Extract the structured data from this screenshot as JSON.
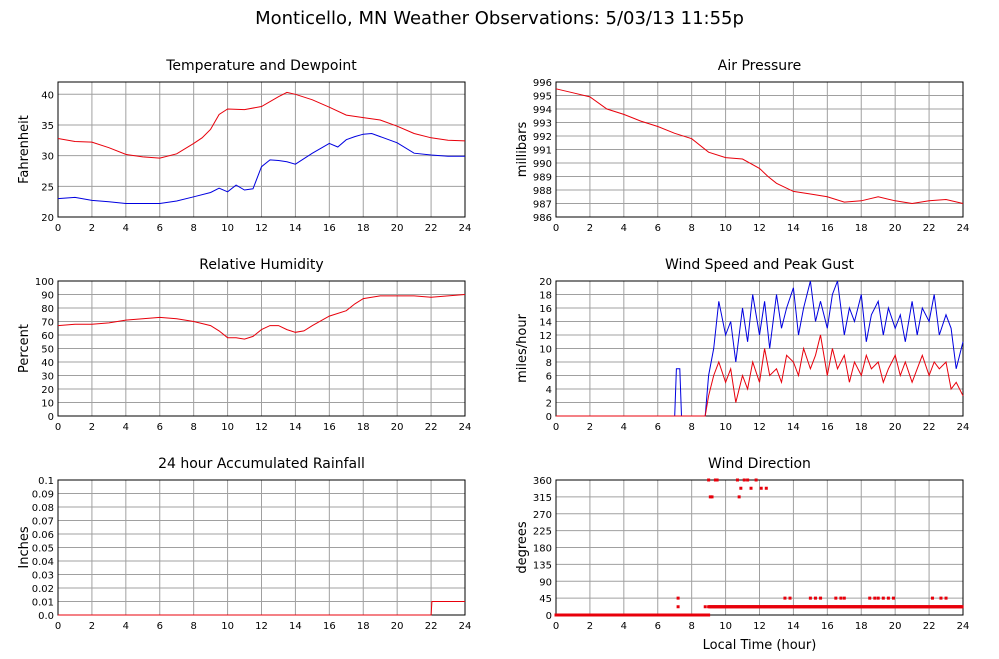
{
  "page": {
    "title": "Monticello, MN Weather Observations: 5/03/13 11:55p"
  },
  "colors": {
    "red": "#e8000b",
    "blue": "#0000e0",
    "grid": "#a0a0a0"
  },
  "chart_data": [
    {
      "id": "temp",
      "type": "line",
      "title": "Temperature and Dewpoint",
      "xlabel": "",
      "ylabel": "Fahrenheit",
      "xlim": [
        0,
        24
      ],
      "ylim": [
        20,
        42
      ],
      "xticks": [
        0,
        2,
        4,
        6,
        8,
        10,
        12,
        14,
        16,
        18,
        20,
        22,
        24
      ],
      "yticks": [
        20,
        25,
        30,
        35,
        40
      ],
      "series": [
        {
          "color": "red",
          "x": [
            0,
            1,
            2,
            3,
            4,
            5,
            6,
            7,
            8,
            8.5,
            9,
            9.5,
            10,
            11,
            12,
            13,
            13.5,
            14,
            15,
            16,
            17,
            18,
            19,
            20,
            21,
            22,
            23,
            24
          ],
          "y": [
            32.8,
            32.3,
            32.2,
            31.3,
            30.2,
            29.8,
            29.6,
            30.3,
            32.0,
            32.9,
            34.3,
            36.7,
            37.6,
            37.5,
            38.0,
            39.6,
            40.3,
            40.0,
            39.1,
            37.9,
            36.6,
            36.2,
            35.8,
            34.8,
            33.6,
            32.9,
            32.5,
            32.4
          ]
        },
        {
          "color": "blue",
          "x": [
            0,
            1,
            2,
            3,
            4,
            5,
            6,
            7,
            8,
            9,
            9.5,
            10,
            10.5,
            11,
            11.5,
            12,
            12.5,
            13,
            13.5,
            14,
            15,
            16,
            16.5,
            17,
            17.5,
            18,
            18.5,
            19,
            20,
            21,
            22,
            23,
            24
          ],
          "y": [
            23.0,
            23.2,
            22.7,
            22.5,
            22.2,
            22.2,
            22.2,
            22.6,
            23.3,
            24.0,
            24.7,
            24.1,
            25.2,
            24.4,
            24.6,
            28.2,
            29.3,
            29.2,
            29.0,
            28.6,
            30.4,
            32.0,
            31.4,
            32.6,
            33.1,
            33.5,
            33.6,
            33.1,
            32.1,
            30.4,
            30.1,
            29.9,
            29.9
          ]
        }
      ]
    },
    {
      "id": "pressure",
      "type": "line",
      "title": "Air Pressure",
      "xlabel": "",
      "ylabel": "millibars",
      "xlim": [
        0,
        24
      ],
      "ylim": [
        986,
        996
      ],
      "xticks": [
        0,
        2,
        4,
        6,
        8,
        10,
        12,
        14,
        16,
        18,
        20,
        22,
        24
      ],
      "yticks": [
        986,
        987,
        988,
        989,
        990,
        991,
        992,
        993,
        994,
        995,
        996
      ],
      "series": [
        {
          "color": "red",
          "x": [
            0,
            1,
            2,
            3,
            4,
            5,
            6,
            7,
            8,
            9,
            10,
            11,
            12,
            12.5,
            13,
            14,
            15,
            16,
            17,
            18,
            19,
            20,
            21,
            22,
            23,
            24
          ],
          "y": [
            995.5,
            995.2,
            994.9,
            994.0,
            993.6,
            993.1,
            992.7,
            992.2,
            991.8,
            990.8,
            990.4,
            990.3,
            989.6,
            989.0,
            988.5,
            987.9,
            987.7,
            987.5,
            987.1,
            987.2,
            987.5,
            987.2,
            987.0,
            987.2,
            987.3,
            987.0
          ]
        }
      ]
    },
    {
      "id": "humidity",
      "type": "line",
      "title": "Relative Humidity",
      "xlabel": "",
      "ylabel": "Percent",
      "xlim": [
        0,
        24
      ],
      "ylim": [
        0,
        100
      ],
      "xticks": [
        0,
        2,
        4,
        6,
        8,
        10,
        12,
        14,
        16,
        18,
        20,
        22,
        24
      ],
      "yticks": [
        0,
        10,
        20,
        30,
        40,
        50,
        60,
        70,
        80,
        90,
        100
      ],
      "series": [
        {
          "color": "red",
          "x": [
            0,
            1,
            2,
            3,
            4,
            5,
            6,
            7,
            8,
            9,
            9.5,
            10,
            10.5,
            11,
            11.5,
            12,
            12.5,
            13,
            13.5,
            14,
            14.5,
            15,
            16,
            17,
            17.5,
            18,
            18.5,
            19,
            20,
            21,
            22,
            23,
            24
          ],
          "y": [
            67,
            68,
            68,
            69,
            71,
            72,
            73,
            72,
            70,
            67,
            63,
            58,
            58,
            57,
            59,
            64,
            67,
            67,
            64,
            62,
            63,
            67,
            74,
            78,
            83,
            87,
            88,
            89,
            89,
            89,
            88,
            89,
            90
          ]
        }
      ]
    },
    {
      "id": "wind",
      "type": "line",
      "title": "Wind Speed and Peak Gust",
      "xlabel": "",
      "ylabel": "miles/hour",
      "xlim": [
        0,
        24
      ],
      "ylim": [
        0,
        20
      ],
      "xticks": [
        0,
        2,
        4,
        6,
        8,
        10,
        12,
        14,
        16,
        18,
        20,
        22,
        24
      ],
      "yticks": [
        0,
        2,
        4,
        6,
        8,
        10,
        12,
        14,
        16,
        18,
        20
      ],
      "series": [
        {
          "color": "blue",
          "x": [
            0,
            7.0,
            7.1,
            7.3,
            7.4,
            8.8,
            9.0,
            9.3,
            9.6,
            10.0,
            10.3,
            10.6,
            11.0,
            11.3,
            11.6,
            12.0,
            12.3,
            12.6,
            13.0,
            13.3,
            13.6,
            14.0,
            14.3,
            14.6,
            15.0,
            15.3,
            15.6,
            16.0,
            16.3,
            16.6,
            17.0,
            17.3,
            17.6,
            18.0,
            18.3,
            18.6,
            19.0,
            19.3,
            19.6,
            20.0,
            20.3,
            20.6,
            21.0,
            21.3,
            21.6,
            22.0,
            22.3,
            22.6,
            23.0,
            23.3,
            23.6,
            24.0
          ],
          "y": [
            0,
            0,
            7,
            7,
            0,
            0,
            6,
            10,
            17,
            12,
            14,
            8,
            16,
            11,
            18,
            12,
            17,
            10,
            18,
            13,
            16,
            19,
            12,
            16,
            20,
            14,
            17,
            13,
            18,
            20,
            12,
            16,
            14,
            18,
            11,
            15,
            17,
            12,
            16,
            13,
            15,
            11,
            17,
            12,
            16,
            14,
            18,
            12,
            15,
            13,
            7,
            11
          ]
        },
        {
          "color": "red",
          "x": [
            0,
            8.8,
            9.0,
            9.3,
            9.6,
            10.0,
            10.3,
            10.6,
            11.0,
            11.3,
            11.6,
            12.0,
            12.3,
            12.6,
            13.0,
            13.3,
            13.6,
            14.0,
            14.3,
            14.6,
            15.0,
            15.3,
            15.6,
            16.0,
            16.3,
            16.6,
            17.0,
            17.3,
            17.6,
            18.0,
            18.3,
            18.6,
            19.0,
            19.3,
            19.6,
            20.0,
            20.3,
            20.6,
            21.0,
            21.3,
            21.6,
            22.0,
            22.3,
            22.6,
            23.0,
            23.3,
            23.6,
            24.0
          ],
          "y": [
            0,
            0,
            3,
            6,
            8,
            5,
            7,
            2,
            6,
            4,
            8,
            5,
            10,
            6,
            7,
            5,
            9,
            8,
            6,
            10,
            7,
            9,
            12,
            6,
            10,
            7,
            9,
            5,
            8,
            6,
            9,
            7,
            8,
            5,
            7,
            9,
            6,
            8,
            5,
            7,
            9,
            6,
            8,
            7,
            8,
            4,
            5,
            3
          ]
        }
      ]
    },
    {
      "id": "rain",
      "type": "line",
      "title": "24 hour Accumulated Rainfall",
      "xlabel": "",
      "ylabel": "Inches",
      "xlim": [
        0,
        24
      ],
      "ylim": [
        0,
        0.1
      ],
      "xticks": [
        0,
        2,
        4,
        6,
        8,
        10,
        12,
        14,
        16,
        18,
        20,
        22,
        24
      ],
      "yticks": [
        0.0,
        0.01,
        0.02,
        0.03,
        0.04,
        0.05,
        0.06,
        0.07,
        0.08,
        0.09,
        0.1
      ],
      "ytick_labels": [
        "0.0",
        "0.01",
        "0.02",
        "0.03",
        "0.04",
        "0.05",
        "0.06",
        "0.07",
        "0.08",
        "0.09",
        "0.1"
      ],
      "series": [
        {
          "color": "red",
          "x": [
            0,
            22.0,
            22.05,
            24
          ],
          "y": [
            0,
            0,
            0.01,
            0.01
          ]
        }
      ]
    },
    {
      "id": "winddir",
      "type": "scatter",
      "title": "Wind Direction",
      "xlabel": "Local Time (hour)",
      "ylabel": "degrees",
      "xlim": [
        0,
        24
      ],
      "ylim": [
        0,
        360
      ],
      "xticks": [
        0,
        2,
        4,
        6,
        8,
        10,
        12,
        14,
        16,
        18,
        20,
        22,
        24
      ],
      "yticks": [
        0,
        45,
        90,
        135,
        180,
        225,
        270,
        315,
        360
      ],
      "points": [
        [
          7.2,
          45
        ],
        [
          7.2,
          22
        ],
        [
          8.8,
          22
        ],
        [
          9.0,
          360
        ],
        [
          9.1,
          315
        ],
        [
          9.2,
          315
        ],
        [
          9.4,
          360
        ],
        [
          9.5,
          360
        ],
        [
          10.7,
          360
        ],
        [
          10.8,
          315
        ],
        [
          10.9,
          338
        ],
        [
          11.1,
          360
        ],
        [
          11.3,
          360
        ],
        [
          11.5,
          338
        ],
        [
          11.8,
          360
        ],
        [
          12.1,
          338
        ],
        [
          12.4,
          338
        ],
        [
          13.5,
          45
        ],
        [
          13.8,
          45
        ],
        [
          15.0,
          45
        ],
        [
          15.3,
          45
        ],
        [
          15.6,
          45
        ],
        [
          16.5,
          45
        ],
        [
          16.8,
          45
        ],
        [
          17.0,
          45
        ],
        [
          18.5,
          45
        ],
        [
          18.8,
          45
        ],
        [
          19.0,
          45
        ],
        [
          19.3,
          45
        ],
        [
          19.6,
          45
        ],
        [
          19.9,
          45
        ],
        [
          22.2,
          45
        ],
        [
          22.7,
          45
        ],
        [
          23.0,
          45
        ]
      ],
      "bands": [
        {
          "y": 0,
          "x_from": 0,
          "x_to": 9.0
        },
        {
          "y": 22,
          "x_from": 9.0,
          "x_to": 24
        }
      ]
    }
  ]
}
